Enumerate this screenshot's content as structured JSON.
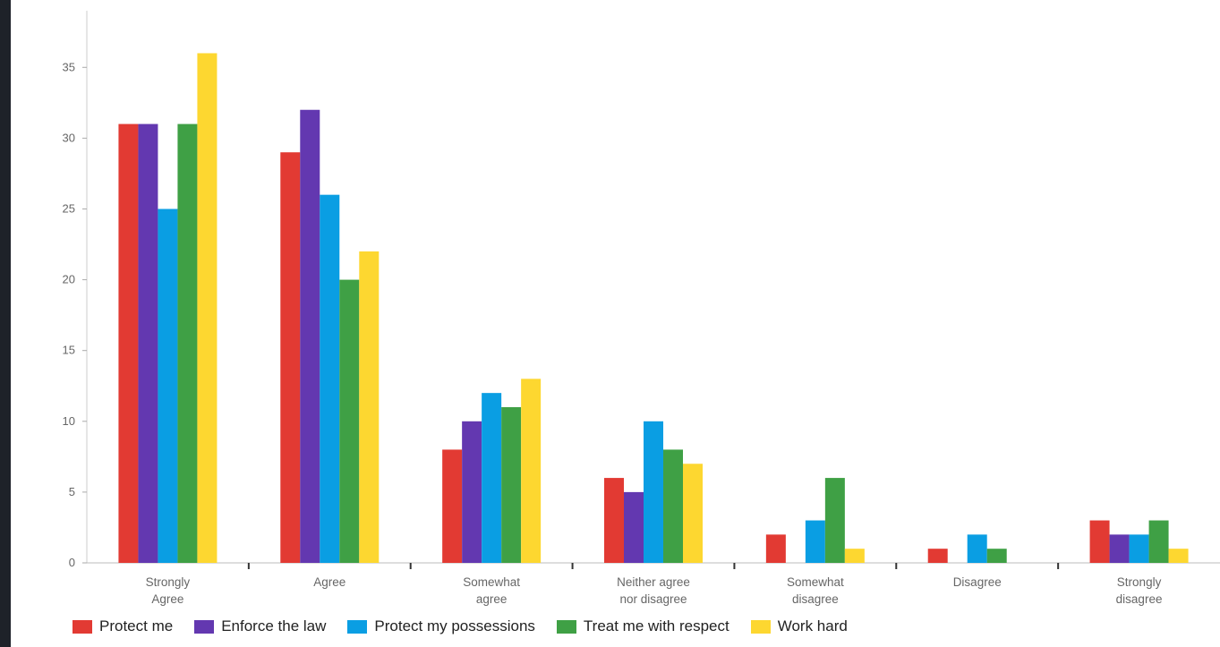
{
  "chart_data": {
    "type": "bar",
    "categories": [
      [
        "Strongly",
        "Agree"
      ],
      [
        "Agree"
      ],
      [
        "Somewhat",
        "agree"
      ],
      [
        "Neither agree",
        "nor disagree"
      ],
      [
        "Somewhat",
        "disagree"
      ],
      [
        "Disagree"
      ],
      [
        "Strongly",
        "disagree"
      ]
    ],
    "series": [
      {
        "name": "Protect me",
        "color": "#e23a33",
        "values": [
          31,
          29,
          8,
          6,
          2,
          1,
          3
        ]
      },
      {
        "name": "Enforce the law",
        "color": "#6338b0",
        "values": [
          31,
          32,
          10,
          5,
          0,
          0,
          2
        ]
      },
      {
        "name": "Protect my possessions",
        "color": "#0a9ee3",
        "values": [
          25,
          26,
          12,
          10,
          3,
          2,
          2
        ]
      },
      {
        "name": "Treat me with respect",
        "color": "#3fa045",
        "values": [
          31,
          20,
          11,
          8,
          6,
          1,
          3
        ]
      },
      {
        "name": "Work hard",
        "color": "#fdd730",
        "values": [
          36,
          22,
          13,
          7,
          1,
          0,
          1
        ]
      }
    ],
    "ylim": [
      0,
      39
    ],
    "yticks": [
      0,
      5,
      10,
      15,
      20,
      25,
      30,
      35
    ],
    "xlabel": "",
    "ylabel": "",
    "grid": false,
    "legend_position": "bottom"
  }
}
